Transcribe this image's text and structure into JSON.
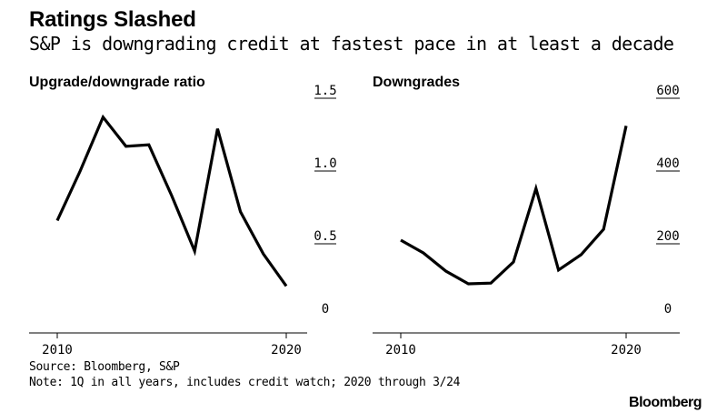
{
  "header": {
    "title": "Ratings Slashed",
    "subtitle": "S&P is downgrading credit at fastest pace in at least a decade"
  },
  "footer": {
    "source": "Source: Bloomberg, S&P",
    "note": "Note: 1Q in all years, includes credit watch; 2020 through 3/24",
    "brand": "Bloomberg"
  },
  "chart_data": [
    {
      "type": "line",
      "title": "Upgrade/downgrade ratio",
      "x": [
        2010,
        2011,
        2012,
        2013,
        2014,
        2015,
        2016,
        2017,
        2018,
        2019,
        2020
      ],
      "series": [
        {
          "values": [
            0.66,
            1.0,
            1.37,
            1.17,
            1.18,
            0.83,
            0.45,
            1.29,
            0.72,
            0.43,
            0.21
          ]
        }
      ],
      "xticks": [
        "2010",
        "2020"
      ],
      "yticks": [
        "0",
        "0.5",
        "1.0",
        "1.5"
      ],
      "xlim": [
        2010,
        2021
      ],
      "ylim": [
        0,
        1.5
      ],
      "grid": "ticks-only",
      "color": "#000000"
    },
    {
      "type": "line",
      "title": "Downgrades",
      "x": [
        2010,
        2011,
        2012,
        2013,
        2014,
        2015,
        2016,
        2017,
        2018,
        2019,
        2020
      ],
      "series": [
        {
          "values": [
            210,
            175,
            125,
            90,
            92,
            150,
            352,
            128,
            170,
            240,
            524
          ]
        }
      ],
      "xticks": [
        "2010",
        "2020"
      ],
      "yticks": [
        "0",
        "200",
        "400",
        "600"
      ],
      "xlim": [
        2010,
        2021
      ],
      "ylim": [
        0,
        600
      ],
      "grid": "ticks-only",
      "color": "#000000"
    }
  ]
}
